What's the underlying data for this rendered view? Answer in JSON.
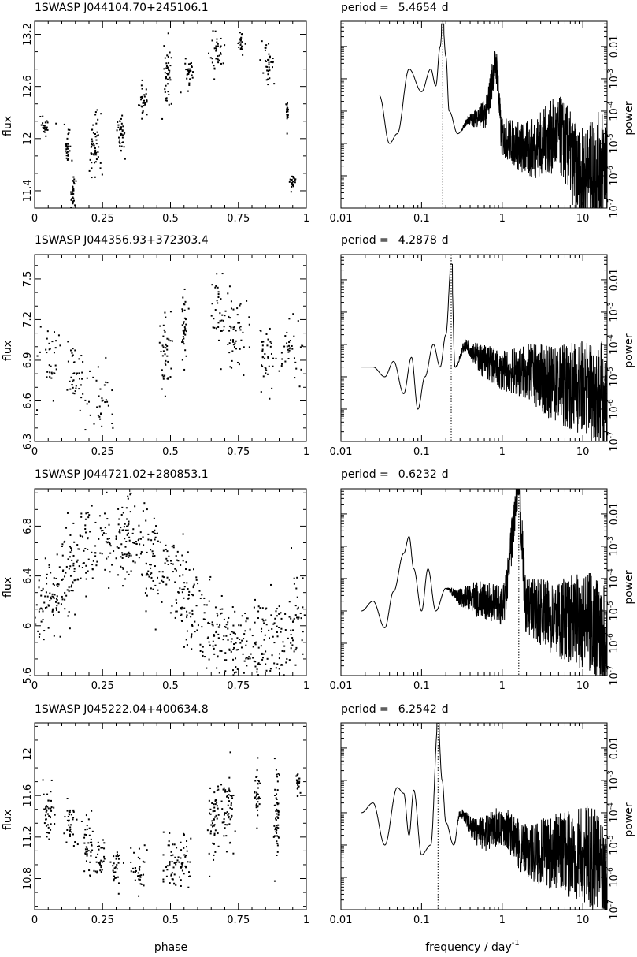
{
  "figure": {
    "x_label_left": "phase",
    "x_label_right": "frequency / day",
    "x_label_right_exp": "-1",
    "y_label_left": "flux",
    "y_label_right": "power",
    "period_prefix": "period =",
    "period_unit": "d"
  },
  "chart_data": [
    {
      "type": "scatter",
      "title": "1SWASP J044104.70+245106.1",
      "xlabel": "",
      "ylabel": "flux",
      "xlim": [
        0,
        1
      ],
      "ylim": [
        11.2,
        13.35
      ],
      "xticks": [
        "0",
        "0.25",
        "0.5",
        "0.75",
        "1"
      ],
      "yticks": [
        11.4,
        12,
        12.6,
        13.2
      ],
      "phase_clusters": [
        [
          0.04,
          12.15,
          0.02,
          0.1
        ],
        [
          0.12,
          11.9,
          0.01,
          0.15
        ],
        [
          0.14,
          11.35,
          0.01,
          0.2
        ],
        [
          0.22,
          11.9,
          0.025,
          0.35
        ],
        [
          0.32,
          12.05,
          0.015,
          0.2
        ],
        [
          0.4,
          12.45,
          0.015,
          0.15
        ],
        [
          0.49,
          12.75,
          0.015,
          0.25
        ],
        [
          0.57,
          12.75,
          0.015,
          0.15
        ],
        [
          0.67,
          13.0,
          0.03,
          0.2
        ],
        [
          0.76,
          13.1,
          0.01,
          0.1
        ],
        [
          0.86,
          12.85,
          0.025,
          0.2
        ],
        [
          0.93,
          12.3,
          0.005,
          0.1
        ],
        [
          0.95,
          11.5,
          0.01,
          0.1
        ]
      ]
    },
    {
      "type": "line",
      "title": "period = 5.4654 d",
      "period": "5.4654",
      "xlabel": "",
      "ylabel": "power",
      "x_scale": "log",
      "y_scale": "log",
      "xlim": [
        0.01,
        20
      ],
      "ylim": [
        1e-07,
        0.06
      ],
      "xticks": [
        "0.01",
        "0.1",
        "1",
        "10"
      ],
      "peak_freq": 0.183,
      "x": [
        0.03,
        0.04,
        0.05,
        0.07,
        0.1,
        0.13,
        0.15,
        0.17,
        0.183,
        0.2,
        0.22,
        0.28,
        0.4,
        0.6,
        0.84,
        1,
        2,
        5,
        10,
        20
      ],
      "y": [
        0.0003,
        1e-05,
        2e-05,
        0.002,
        0.0004,
        0.002,
        0.0006,
        0.01,
        0.05,
        0.005,
        0.0001,
        2e-05,
        6e-05,
        0.0001,
        0.003,
        2e-05,
        1e-05,
        3e-05,
        2e-06,
        6e-06
      ],
      "noise_from": 0.3
    },
    {
      "type": "scatter",
      "title": "1SWASP J044356.93+372303.4",
      "xlabel": "",
      "ylabel": "flux",
      "xlim": [
        0,
        1
      ],
      "ylim": [
        6.3,
        7.68
      ],
      "xticks": [
        "0",
        "0.25",
        "0.5",
        "0.75",
        "1"
      ],
      "yticks": [
        6.3,
        6.6,
        6.9,
        7.2,
        7.5
      ],
      "phase_clusters": [
        [
          0.05,
          6.9,
          0.05,
          0.2
        ],
        [
          0.15,
          6.75,
          0.03,
          0.2
        ],
        [
          0.25,
          6.6,
          0.07,
          0.25
        ],
        [
          0.48,
          6.95,
          0.02,
          0.25
        ],
        [
          0.55,
          7.1,
          0.01,
          0.2
        ],
        [
          0.68,
          7.25,
          0.04,
          0.25
        ],
        [
          0.75,
          7.1,
          0.05,
          0.25
        ],
        [
          0.85,
          6.95,
          0.03,
          0.2
        ],
        [
          0.94,
          7.0,
          0.05,
          0.2
        ]
      ]
    },
    {
      "type": "line",
      "title": "period = 4.2878 d",
      "period": "4.2878",
      "xlabel": "",
      "ylabel": "power",
      "x_scale": "log",
      "y_scale": "log",
      "xlim": [
        0.01,
        20
      ],
      "ylim": [
        1e-07,
        0.06
      ],
      "xticks": [
        "0.01",
        "0.1",
        "1",
        "10"
      ],
      "peak_freq": 0.233,
      "x": [
        0.018,
        0.025,
        0.035,
        0.045,
        0.06,
        0.075,
        0.09,
        0.11,
        0.14,
        0.17,
        0.2,
        0.233,
        0.26,
        0.35,
        0.6,
        1,
        2,
        5,
        10,
        20
      ],
      "y": [
        2e-05,
        2e-05,
        1e-05,
        3e-05,
        3e-06,
        4e-05,
        1e-06,
        1e-05,
        0.0001,
        2e-05,
        0.0002,
        0.03,
        2e-05,
        0.0001,
        4e-05,
        2e-05,
        2e-05,
        1e-05,
        1e-05,
        5e-06
      ],
      "noise_from": 0.26
    },
    {
      "type": "scatter",
      "title": "1SWASP J044721.02+280853.1",
      "xlabel": "",
      "ylabel": "flux",
      "xlim": [
        0,
        1
      ],
      "ylim": [
        5.6,
        7.1
      ],
      "xticks": [
        "0",
        "0.25",
        "0.5",
        "0.75",
        "1"
      ],
      "yticks": [
        5.6,
        6,
        6.4,
        6.8
      ],
      "curve": {
        "mean": 6.25,
        "amp": 0.45,
        "phase_max": 0.3,
        "sigma": 0.2
      }
    },
    {
      "type": "line",
      "title": "period = 0.6232 d",
      "period": "0.6232",
      "xlabel": "",
      "ylabel": "power",
      "x_scale": "log",
      "y_scale": "log",
      "xlim": [
        0.01,
        20
      ],
      "ylim": [
        1e-07,
        0.06
      ],
      "xticks": [
        "0.01",
        "0.1",
        "1",
        "10"
      ],
      "peak_freq": 1.605,
      "x": [
        0.018,
        0.025,
        0.035,
        0.045,
        0.06,
        0.07,
        0.08,
        0.1,
        0.12,
        0.15,
        0.2,
        0.3,
        0.5,
        1,
        1.605,
        2,
        5,
        10,
        20
      ],
      "y": [
        1e-05,
        2e-05,
        3e-06,
        4e-05,
        0.0006,
        0.002,
        0.0002,
        1e-05,
        0.0002,
        1e-05,
        5e-05,
        3e-05,
        3e-05,
        2e-05,
        0.04,
        2e-05,
        1e-05,
        1e-05,
        5e-06
      ],
      "noise_from": 0.2
    },
    {
      "type": "scatter",
      "title": "1SWASP J045222.04+400634.8",
      "xlabel": "phase",
      "ylabel": "flux",
      "xlim": [
        0,
        1
      ],
      "ylim": [
        10.5,
        12.3
      ],
      "xticks": [
        "0",
        "0.25",
        "0.5",
        "0.75",
        "1"
      ],
      "yticks": [
        10.8,
        11.2,
        11.6,
        12
      ],
      "phase_clusters": [
        [
          0.05,
          11.4,
          0.02,
          0.25
        ],
        [
          0.13,
          11.3,
          0.02,
          0.2
        ],
        [
          0.2,
          11.1,
          0.02,
          0.25
        ],
        [
          0.24,
          10.95,
          0.02,
          0.15
        ],
        [
          0.3,
          10.9,
          0.02,
          0.15
        ],
        [
          0.38,
          10.85,
          0.03,
          0.2
        ],
        [
          0.5,
          10.95,
          0.04,
          0.25
        ],
        [
          0.55,
          10.95,
          0.03,
          0.2
        ],
        [
          0.66,
          11.35,
          0.02,
          0.3
        ],
        [
          0.71,
          11.5,
          0.03,
          0.35
        ],
        [
          0.82,
          11.6,
          0.01,
          0.2
        ],
        [
          0.89,
          11.4,
          0.01,
          0.35
        ],
        [
          0.97,
          11.7,
          0.01,
          0.1
        ]
      ]
    },
    {
      "type": "line",
      "title": "period = 6.2542 d",
      "period": "6.2542",
      "xlabel": "frequency / day-1",
      "ylabel": "power",
      "x_scale": "log",
      "y_scale": "log",
      "xlim": [
        0.01,
        20
      ],
      "ylim": [
        1e-07,
        0.06
      ],
      "xticks": [
        "0.01",
        "0.1",
        "1",
        "10"
      ],
      "peak_freq": 0.16,
      "x": [
        0.018,
        0.025,
        0.035,
        0.05,
        0.06,
        0.07,
        0.08,
        0.1,
        0.13,
        0.16,
        0.18,
        0.2,
        0.25,
        0.3,
        0.5,
        1,
        2,
        5,
        10,
        20
      ],
      "y": [
        0.0001,
        0.0002,
        1e-05,
        0.0006,
        0.0004,
        2e-05,
        0.0005,
        5e-06,
        1e-05,
        0.06,
        0.001,
        5e-05,
        1e-05,
        0.0001,
        3e-05,
        5e-05,
        1e-05,
        1e-05,
        1e-05,
        5e-06
      ],
      "noise_from": 0.25
    }
  ]
}
